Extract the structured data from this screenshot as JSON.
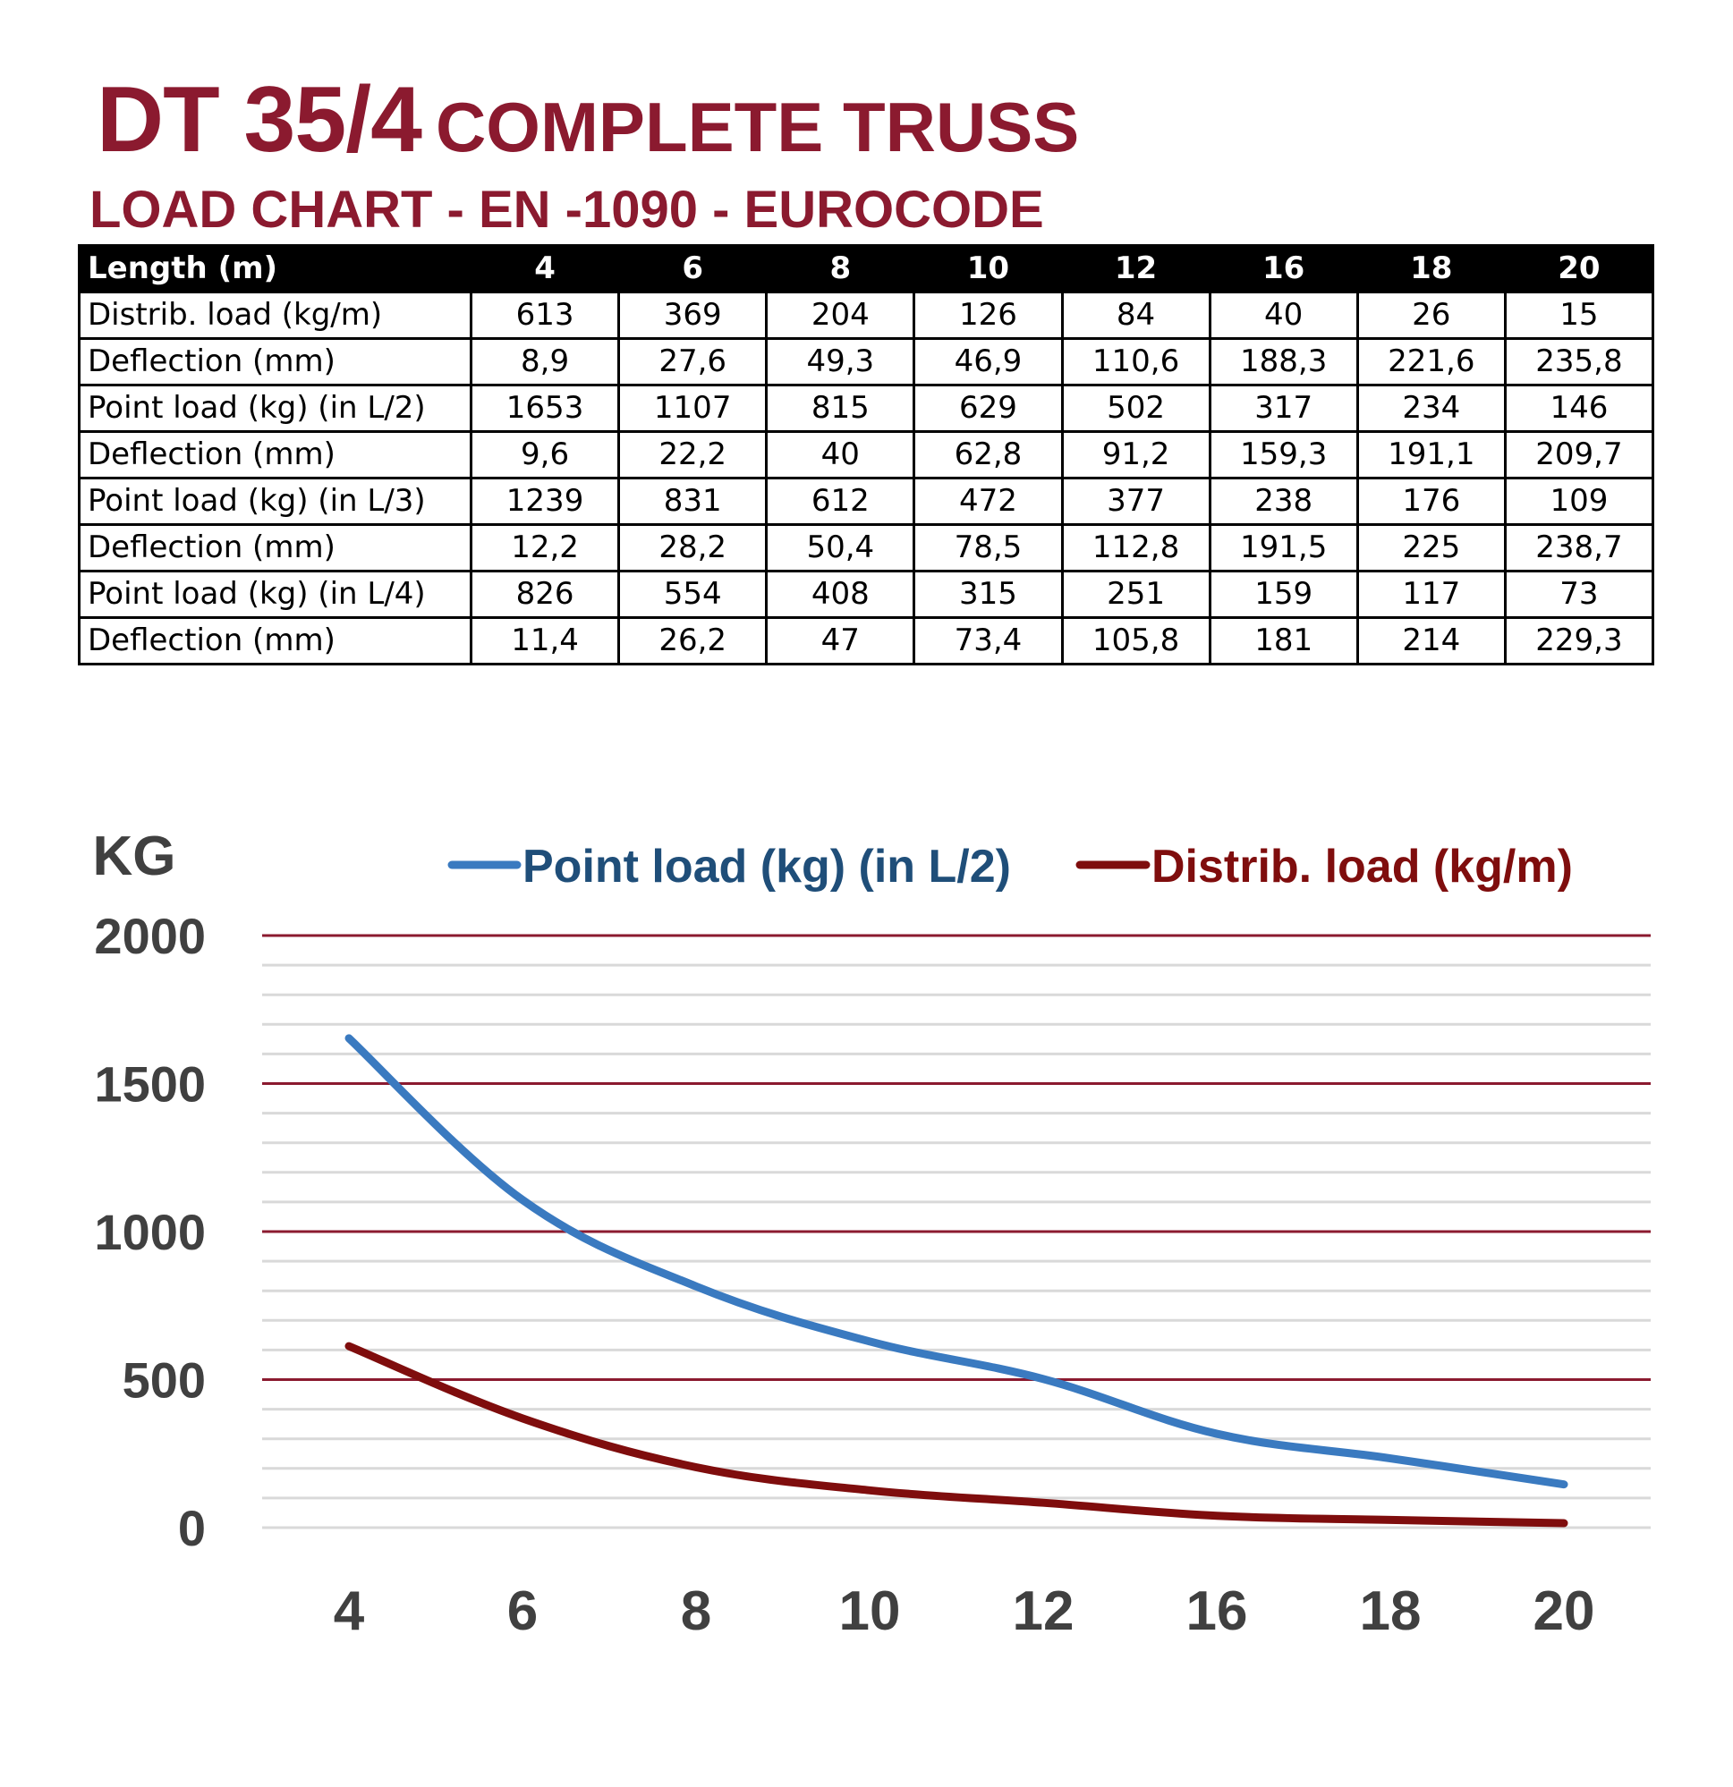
{
  "header": {
    "model": "DT 35/4",
    "title_rest": "COMPLETE TRUSS",
    "subtitle": "LOAD CHART - EN -1090 - EUROCODE"
  },
  "table": {
    "header_label": "Length (m)",
    "columns": [
      "4",
      "6",
      "8",
      "10",
      "12",
      "16",
      "18",
      "20"
    ],
    "rows": [
      {
        "label": "Distrib. load (kg/m)",
        "values": [
          "613",
          "369",
          "204",
          "126",
          "84",
          "40",
          "26",
          "15"
        ]
      },
      {
        "label": "Deflection (mm)",
        "values": [
          "8,9",
          "27,6",
          "49,3",
          "46,9",
          "110,6",
          "188,3",
          "221,6",
          "235,8"
        ]
      },
      {
        "label": "Point load (kg) (in L/2)",
        "values": [
          "1653",
          "1107",
          "815",
          "629",
          "502",
          "317",
          "234",
          "146"
        ]
      },
      {
        "label": "Deflection (mm)",
        "values": [
          "9,6",
          "22,2",
          "40",
          "62,8",
          "91,2",
          "159,3",
          "191,1",
          "209,7"
        ]
      },
      {
        "label": "Point load (kg) (in L/3)",
        "values": [
          "1239",
          "831",
          "612",
          "472",
          "377",
          "238",
          "176",
          "109"
        ]
      },
      {
        "label": "Deflection (mm)",
        "values": [
          "12,2",
          "28,2",
          "50,4",
          "78,5",
          "112,8",
          "191,5",
          "225",
          "238,7"
        ]
      },
      {
        "label": "Point load (kg) (in L/4)",
        "values": [
          "826",
          "554",
          "408",
          "315",
          "251",
          "159",
          "117",
          "73"
        ]
      },
      {
        "label": "Deflection (mm)",
        "values": [
          "11,4",
          "26,2",
          "47",
          "73,4",
          "105,8",
          "181",
          "214",
          "229,3"
        ]
      }
    ]
  },
  "chart_data": {
    "type": "line",
    "ylabel": "KG",
    "categories": [
      "4",
      "6",
      "8",
      "10",
      "12",
      "16",
      "18",
      "20"
    ],
    "ylim": [
      0,
      2000
    ],
    "yticks": [
      "0",
      "500",
      "1000",
      "1500",
      "2000"
    ],
    "legend_position": "top",
    "grid": true,
    "series": [
      {
        "name": "Point load (kg) (in L/2)",
        "values": [
          1653,
          1107,
          815,
          629,
          502,
          317,
          234,
          146
        ],
        "color": "#3a7ac0"
      },
      {
        "name": "Distrib. load (kg/m)",
        "values": [
          613,
          369,
          204,
          126,
          84,
          40,
          26,
          15
        ],
        "color": "#7f0d0d"
      }
    ],
    "colors": {
      "major_grid": "#8b1a2f",
      "minor_grid": "#d9d9d9",
      "axis_text": "#404040",
      "legend_text_1": "#1f4e79",
      "legend_text_2": "#7f0d0d"
    }
  }
}
